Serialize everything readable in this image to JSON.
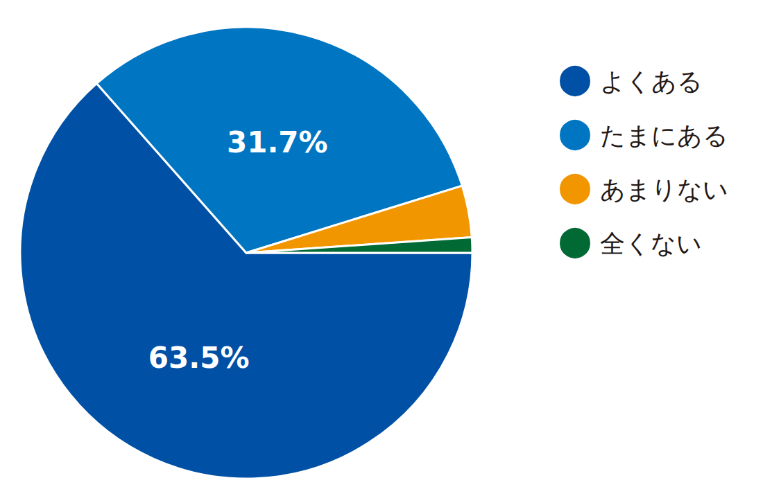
{
  "chart_data": {
    "type": "pie",
    "categories": [
      "よくある",
      "たまにある",
      "あまりない",
      "全くない"
    ],
    "values": [
      63.5,
      31.7,
      3.7,
      1.1
    ],
    "value_labels": [
      "63.5%",
      "31.7%",
      null,
      null
    ],
    "colors": [
      "#0050a5",
      "#0075c2",
      "#f29600",
      "#006934"
    ],
    "data_labels": true,
    "legend": "right"
  }
}
